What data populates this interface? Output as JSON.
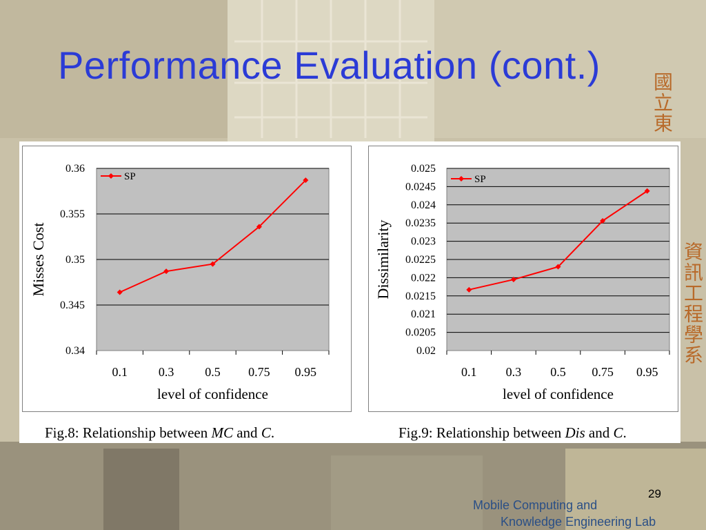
{
  "slide": {
    "title": "Performance Evaluation (cont.)",
    "vertical_text_top": "國立東",
    "vertical_text_right": "資訊工程學系",
    "page_number": "29",
    "lab_line1": "Mobile Computing and",
    "lab_line2": "Knowledge Engineering Lab"
  },
  "captions": {
    "fig8_prefix": "Fig.8: Relationship between ",
    "fig8_var1": "MC",
    "fig8_mid": " and ",
    "fig8_var2": "C",
    "fig8_end": ".",
    "fig9_prefix": "Fig.9: Relationship between ",
    "fig9_var1": "Dis",
    "fig9_mid": " and ",
    "fig9_var2": "C",
    "fig9_end": "."
  },
  "chart_data": [
    {
      "type": "line",
      "categories": [
        "0.1",
        "0.3",
        "0.5",
        "0.75",
        "0.95"
      ],
      "series": [
        {
          "name": "SP",
          "values": [
            0.3464,
            0.3487,
            0.3495,
            0.3536,
            0.3587
          ],
          "color": "#ff0000"
        }
      ],
      "xlabel": "level of confidence",
      "ylabel": "Misses Cost",
      "ylim": [
        0.34,
        0.36
      ],
      "yticks": [
        0.34,
        0.345,
        0.35,
        0.355,
        0.36
      ],
      "ytick_labels": [
        "0.34",
        "0.345",
        "0.35",
        "0.355",
        "0.36"
      ],
      "grid": true,
      "legend_position": "top-left",
      "plot_background": "#c0c0c0"
    },
    {
      "type": "line",
      "categories": [
        "0.1",
        "0.3",
        "0.5",
        "0.75",
        "0.95"
      ],
      "series": [
        {
          "name": "SP",
          "values": [
            0.02167,
            0.02195,
            0.0223,
            0.02356,
            0.02438
          ],
          "color": "#ff0000"
        }
      ],
      "xlabel": "level of confidence",
      "ylabel": "Dissimilarity",
      "ylim": [
        0.02,
        0.025
      ],
      "yticks": [
        0.02,
        0.0205,
        0.021,
        0.0215,
        0.022,
        0.0225,
        0.023,
        0.0235,
        0.024,
        0.0245,
        0.025
      ],
      "ytick_labels": [
        "0.02",
        "0.0205",
        "0.021",
        "0.0215",
        "0.022",
        "0.0225",
        "0.023",
        "0.0235",
        "0.024",
        "0.0245",
        "0.025"
      ],
      "grid": true,
      "legend_position": "top-left",
      "plot_background": "#c0c0c0"
    }
  ]
}
